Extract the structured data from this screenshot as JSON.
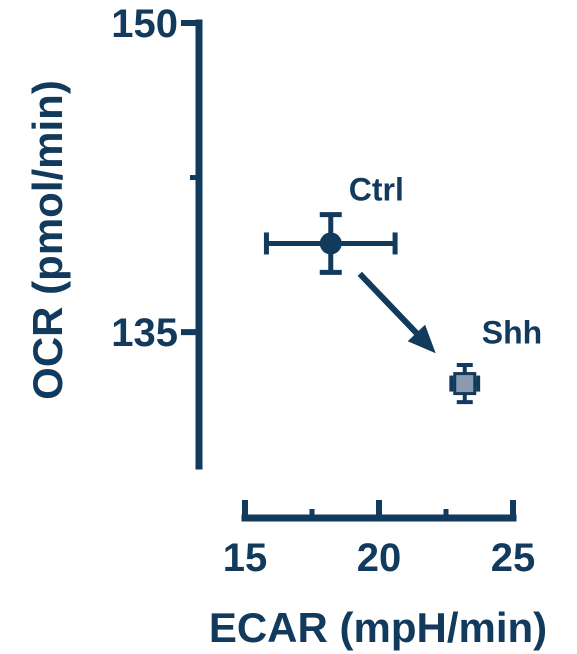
{
  "chart_data": {
    "type": "scatter",
    "title": "",
    "xlabel": "ECAR (mpH/min)",
    "ylabel": "OCR (pmol/min)",
    "xlim": [
      15,
      25
    ],
    "ylim": [
      128.5,
      150
    ],
    "x_ticks": [
      15,
      20,
      25
    ],
    "x_minor_ticks": [
      17.5,
      22.5
    ],
    "y_ticks": [
      135,
      150
    ],
    "y_minor_ticks": [
      142.5
    ],
    "grid": false,
    "legend": "none",
    "colors": {
      "axis": "#123a5c",
      "ctrl": "#123a5c",
      "shh_fill": "#8a9bb0",
      "shh_edge": "#123a5c"
    },
    "series": [
      {
        "name": "Ctrl",
        "marker": "circle",
        "x": 18.2,
        "y": 139.3,
        "x_err": 2.4,
        "y_err": 1.4
      },
      {
        "name": "Shh",
        "marker": "square",
        "x": 23.2,
        "y": 132.5,
        "x_err": 0.5,
        "y_err": 0.9
      }
    ],
    "annotations": [
      {
        "type": "arrow",
        "from": "Ctrl",
        "to": "Shh"
      }
    ]
  }
}
